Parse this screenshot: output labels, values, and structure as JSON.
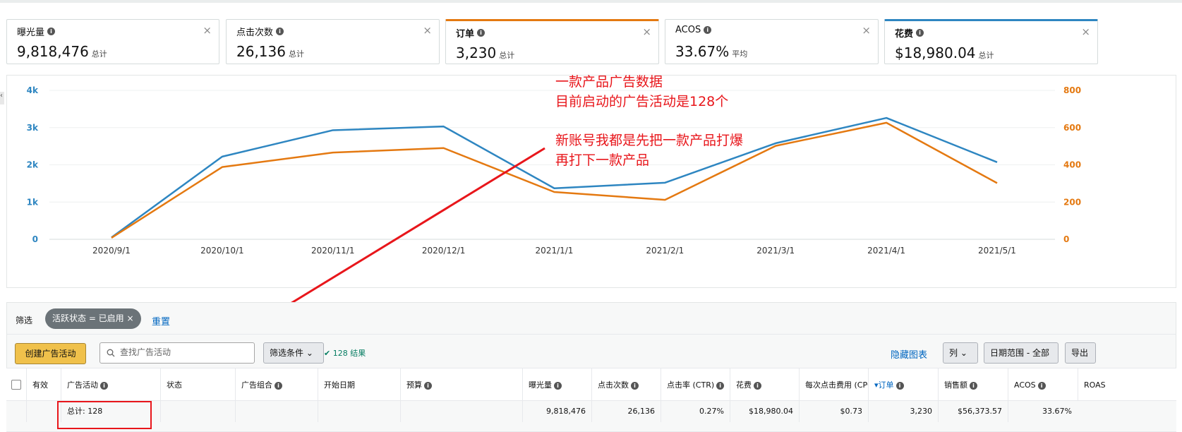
{
  "metric_cards": [
    {
      "label": "曝光量",
      "value": "9,818,476",
      "unit": "总计"
    },
    {
      "label": "点击次数",
      "value": "26,136",
      "unit": "总计"
    },
    {
      "label": "订单",
      "value": "3,230",
      "unit": "总计",
      "selected_color": "#e47911"
    },
    {
      "label": "ACOS",
      "value": "33.67%",
      "unit": "平均"
    },
    {
      "label": "花费",
      "value": "$18,980.04",
      "unit": "总计",
      "selected_color": "#2e86c1"
    }
  ],
  "card_close": "×",
  "chart_data": {
    "type": "line",
    "categories": [
      "2020/9/1",
      "2020/10/1",
      "2020/11/1",
      "2020/12/1",
      "2021/1/1",
      "2021/2/1",
      "2021/3/1",
      "2021/4/1",
      "2021/5/1"
    ],
    "left_axis": {
      "ticks": [
        "0",
        "1k",
        "2k",
        "3k",
        "4k"
      ],
      "ylim": [
        0,
        4000
      ],
      "color": "#2e86c1"
    },
    "right_axis": {
      "ticks": [
        "0",
        "200",
        "400",
        "600",
        "800"
      ],
      "ylim": [
        0,
        800
      ],
      "color": "#e47911"
    },
    "series": [
      {
        "axis": "left",
        "color": "#2e86c1",
        "values": [
          50,
          2220,
          2930,
          3030,
          1370,
          1520,
          2580,
          3260,
          2070
        ]
      },
      {
        "axis": "right",
        "color": "#e47911",
        "values": [
          8,
          388,
          466,
          490,
          254,
          212,
          502,
          626,
          302
        ]
      }
    ],
    "grid": true
  },
  "annotations": {
    "line1": "一款产品广告数据",
    "line2": "目前启动的广告活动是128个",
    "line3": "新账号我都是先把一款产品打爆",
    "line4": "再打下一款产品"
  },
  "filter": {
    "label": "筛选",
    "chip": "活跃状态 = 已启用",
    "chip_close": "×",
    "reset": "重置"
  },
  "toolbar": {
    "create_button": "创建广告活动",
    "search_placeholder": "查找广告活动",
    "filter_conditions": "筛选条件",
    "result_count": "128 结果",
    "hide_chart": "隐藏图表",
    "columns": "列",
    "date_range": "日期范围 - 全部",
    "export": "导出"
  },
  "table": {
    "headers": [
      "有效",
      "广告活动",
      "状态",
      "广告组合",
      "开始日期",
      "预算",
      "曝光量",
      "点击次数",
      "点击率 (CTR)",
      "花费",
      "每次点击费用 (CPC)",
      "订单",
      "销售额",
      "ACOS",
      "ROAS"
    ],
    "total_label": "总计: 128",
    "total_row": {
      "impressions": "9,818,476",
      "clicks": "26,136",
      "ctr": "0.27%",
      "spend": "$18,980.04",
      "cpc": "$0.73",
      "orders": "3,230",
      "sales": "$56,373.57",
      "acos": "33.67%"
    }
  }
}
